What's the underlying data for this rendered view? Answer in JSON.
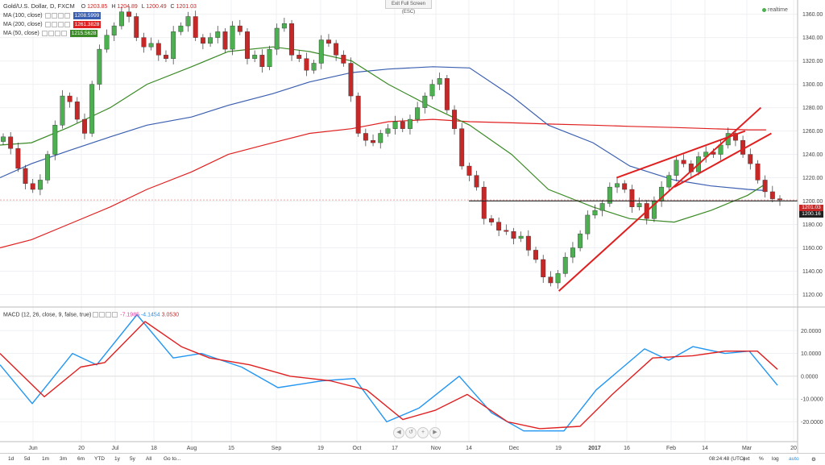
{
  "header": {
    "symbol": "Gold/U.S. Dollar, D, FXCM",
    "ohlc": {
      "o_label": "O",
      "o": "1203.85",
      "h_label": "H",
      "h": "1204.89",
      "l_label": "L",
      "l": "1200.49",
      "c_label": "C",
      "c": "1201.03"
    },
    "exit_fullscreen": "Exit Full Screen (ESC)",
    "realtime": "realtime"
  },
  "indicators": [
    {
      "name": "MA (100, close)",
      "value": "1208.5999",
      "color": "#3b5fb0"
    },
    {
      "name": "MA (200, close)",
      "value": "1261.3828",
      "color": "#e02020"
    },
    {
      "name": "MA (50, close)",
      "value": "1215.5628",
      "color": "#3a8a25"
    }
  ],
  "macd": {
    "name": "MACD (12, 26, close, 9, false, true)",
    "values": [
      "-7.1985",
      "-4.1454",
      "3.0530"
    ],
    "colors": [
      "#e040a0",
      "#2196f3",
      "#e02020"
    ]
  },
  "price_labels": {
    "last": "1201.03",
    "level": "1200.16"
  },
  "bottom_bar": {
    "ranges": [
      "1d",
      "5d",
      "1m",
      "3m",
      "6m",
      "YTD",
      "1y",
      "5y",
      "All",
      "Go to..."
    ],
    "time": "08:24:48 (UTC)",
    "options": [
      "ext",
      "%",
      "log",
      "auto"
    ]
  },
  "colors": {
    "up": "#4caf50",
    "down": "#c62828",
    "ma100": "#3b5fb0",
    "ma200": "#e02020",
    "ma50": "#3a8a25",
    "macd": "#2196f3",
    "signal": "#e02020",
    "trend": "#e02020"
  },
  "chart_data": {
    "type": "candlestick",
    "title": "Gold/U.S. Dollar, D, FXCM",
    "x_ticks": [
      "Jun",
      "20",
      "Jul",
      "18",
      "Aug",
      "15",
      "Sep",
      "19",
      "Oct",
      "17",
      "Nov",
      "14",
      "Dec",
      "19",
      "2017",
      "16",
      "Feb",
      "14",
      "Mar",
      "20"
    ],
    "price_ticks": [
      1120,
      1140,
      1160,
      1180,
      1200,
      1220,
      1240,
      1260,
      1280,
      1300,
      1320,
      1340,
      1360
    ],
    "price_range": [
      1110,
      1368
    ],
    "macd_ticks": [
      -20,
      -10,
      0,
      10,
      20
    ],
    "macd_range": [
      -28,
      30
    ],
    "support_level": 1200.16,
    "trend_lines": [
      {
        "from": [
          "Dec 19",
          1123
        ],
        "to": [
          "Mar 6",
          1280
        ]
      },
      {
        "from": [
          "Jan 10",
          1220
        ],
        "to": [
          "Feb 28",
          1260
        ]
      },
      {
        "from": [
          "Feb 1",
          1212
        ],
        "to": [
          "Mar 10",
          1258
        ]
      }
    ],
    "ma_samples": {
      "dates": [
        "May 20",
        "Jun 1",
        "Jun 15",
        "Jul 1",
        "Jul 15",
        "Aug 1",
        "Aug 15",
        "Sep 1",
        "Sep 15",
        "Oct 1",
        "Oct 15",
        "Nov 1",
        "Nov 15",
        "Dec 1",
        "Dec 15",
        "Jan 1",
        "Jan 15",
        "Feb 1",
        "Feb 15",
        "Mar 1",
        "Mar 8"
      ],
      "ma100": [
        1220,
        1232,
        1243,
        1255,
        1265,
        1272,
        1282,
        1292,
        1302,
        1310,
        1313,
        1315,
        1314,
        1290,
        1265,
        1250,
        1230,
        1218,
        1213,
        1210,
        1209
      ],
      "ma200": [
        1160,
        1167,
        1180,
        1195,
        1210,
        1225,
        1240,
        1250,
        1258,
        1262,
        1268,
        1270,
        1268,
        1267,
        1266,
        1265,
        1264,
        1263,
        1262,
        1261,
        1261
      ],
      "ma50": [
        1248,
        1250,
        1263,
        1280,
        1300,
        1315,
        1328,
        1332,
        1328,
        1320,
        1300,
        1280,
        1265,
        1240,
        1210,
        1195,
        1185,
        1182,
        1192,
        1205,
        1215
      ]
    },
    "candles_close": [
      1255,
      1245,
      1228,
      1215,
      1210,
      1218,
      1240,
      1265,
      1290,
      1285,
      1270,
      1258,
      1300,
      1330,
      1342,
      1350,
      1362,
      1358,
      1340,
      1332,
      1335,
      1325,
      1322,
      1345,
      1350,
      1358,
      1340,
      1335,
      1340,
      1345,
      1330,
      1350,
      1345,
      1322,
      1325,
      1315,
      1330,
      1348,
      1352,
      1325,
      1322,
      1312,
      1318,
      1338,
      1335,
      1325,
      1318,
      1290,
      1258,
      1252,
      1250,
      1258,
      1262,
      1268,
      1262,
      1270,
      1280,
      1290,
      1300,
      1305,
      1278,
      1262,
      1230,
      1222,
      1212,
      1185,
      1182,
      1175,
      1174,
      1168,
      1170,
      1158,
      1150,
      1135,
      1130,
      1138,
      1152,
      1160,
      1172,
      1188,
      1192,
      1198,
      1212,
      1215,
      1210,
      1195,
      1198,
      1185,
      1200,
      1212,
      1222,
      1235,
      1232,
      1225,
      1238,
      1242,
      1240,
      1248,
      1258,
      1252,
      1240,
      1232,
      1218,
      1208,
      1202,
      1201
    ]
  }
}
